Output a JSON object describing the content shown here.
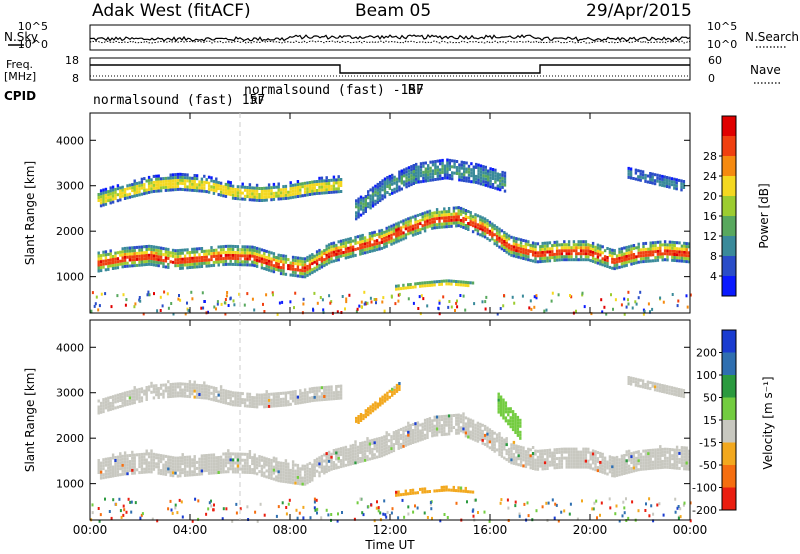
{
  "header": {
    "title": "Adak West (fitACF)",
    "beam": "Beam 05",
    "date": "29/Apr/2015"
  },
  "strips": {
    "nsky_label": "N.Sky",
    "nsky_ticks": [
      "10^5",
      "10^0"
    ],
    "nsearch_label": "N.Search",
    "nsearch_ticks": [
      "10^5",
      "10^0"
    ],
    "freq_label": "Freq.",
    "freq_unit": "[MHz]",
    "freq_ticks": [
      "18",
      "8"
    ],
    "nave_label": "Nave",
    "nave_ticks": [
      "60",
      "0"
    ],
    "cpid_label": "CPID",
    "cpid_segments": [
      {
        "label": "normalsound (fast) 157",
        "rf": "RF",
        "start": 0,
        "end": 10
      },
      {
        "label": "normalsound (fast) -157",
        "rf": "RF",
        "start": 10,
        "end": 18
      },
      {
        "label": "normalsound (fast) 157",
        "rf": "RF",
        "start": 18,
        "end": 24
      }
    ]
  },
  "chart_data": [
    {
      "type": "heatmap",
      "name": "power",
      "ylabel": "Slant Range [km]",
      "yticks": [
        "1000",
        "2000",
        "3000",
        "4000"
      ],
      "ylim": [
        200,
        4600
      ],
      "xlim": [
        0,
        24
      ],
      "colorbar_label": "Power [dB]",
      "colorbar_ticks": [
        "4",
        "8",
        "12",
        "16",
        "20",
        "24",
        "28"
      ],
      "colors": [
        "#0a1aff",
        "#2a4dc8",
        "#3a8a9a",
        "#58a85e",
        "#9ccc30",
        "#f4d820",
        "#f58a10",
        "#f04010",
        "#e00000"
      ],
      "vrange": [
        0,
        32
      ],
      "bands": [
        {
          "x": [
            0.3,
            24
          ],
          "center": [
            1350,
            1450,
            1500,
            1400,
            1450,
            1500,
            1480,
            1300,
            1220,
            1550,
            1700,
            1850,
            2100,
            2300,
            2350,
            2100,
            1700,
            1550,
            1600,
            1600,
            1400,
            1550,
            1600,
            1550
          ],
          "halfwidth": 260,
          "core": 70,
          "peak": 29
        },
        {
          "x": [
            0.3,
            10
          ],
          "center": [
            2720,
            2900,
            3050,
            3100,
            3050,
            2900,
            2850,
            2900,
            3000,
            3050
          ],
          "halfwidth": 210,
          "core": 80,
          "peak": 20
        },
        {
          "x": [
            10.6,
            16.6
          ],
          "center": [
            2500,
            3000,
            3300,
            3400,
            3300,
            3100
          ],
          "halfwidth": 260,
          "core": 40,
          "peak": 12
        },
        {
          "x": [
            12.2,
            15.3
          ],
          "center": [
            780,
            850,
            900,
            850
          ],
          "halfwidth": 90,
          "core": 40,
          "peak": 21
        },
        {
          "x": [
            21.5,
            23.8
          ],
          "center": [
            3300,
            3150,
            3000
          ],
          "halfwidth": 150,
          "core": 40,
          "peak": 10
        }
      ]
    },
    {
      "type": "heatmap",
      "name": "velocity",
      "ylabel": "Slant Range [km]",
      "yticks": [
        "1000",
        "2000",
        "3000",
        "4000"
      ],
      "ylim": [
        200,
        4600
      ],
      "xlim": [
        0,
        24
      ],
      "xlabel": "Time UT",
      "xticks": [
        "00:00",
        "04:00",
        "08:00",
        "12:00",
        "16:00",
        "20:00",
        "00:00"
      ],
      "colorbar_label": "Velocity [m s⁻¹]",
      "colorbar_ticks": [
        "200",
        "100",
        "50",
        "15",
        "-15",
        "-50",
        "-100",
        "-200"
      ],
      "colors": [
        "#1a3cd0",
        "#2f6fb0",
        "#2b9a3f",
        "#73cc40",
        "#c8c8c0",
        "#f2a81e",
        "#f56e10",
        "#ea1e10"
      ],
      "bands": [
        {
          "x": [
            0.3,
            24
          ],
          "center": [
            1350,
            1450,
            1500,
            1400,
            1450,
            1500,
            1480,
            1300,
            1220,
            1550,
            1700,
            1850,
            2100,
            2300,
            2350,
            2100,
            1700,
            1550,
            1600,
            1600,
            1400,
            1550,
            1600,
            1550
          ],
          "halfwidth": 270,
          "color": "#c8c8c0"
        },
        {
          "x": [
            0.3,
            10
          ],
          "center": [
            2720,
            2900,
            3050,
            3100,
            3050,
            2900,
            2850,
            2900,
            3000,
            3050
          ],
          "halfwidth": 200,
          "color": "#c8c8c0"
        },
        {
          "x": [
            10.6,
            12.4
          ],
          "center": [
            2400,
            2800,
            3200
          ],
          "halfwidth": 130,
          "color": "#f2a81e"
        },
        {
          "x": [
            12.2,
            15.3
          ],
          "center": [
            780,
            850,
            900,
            850
          ],
          "halfwidth": 70,
          "color": "#f2a81e"
        },
        {
          "x": [
            16.3,
            17.2
          ],
          "center": [
            2800,
            2200
          ],
          "halfwidth": 260,
          "color": "#73cc40"
        },
        {
          "x": [
            21.5,
            23.8
          ],
          "center": [
            3300,
            3150,
            3000
          ],
          "halfwidth": 130,
          "color": "#c8c8c0"
        }
      ]
    }
  ]
}
